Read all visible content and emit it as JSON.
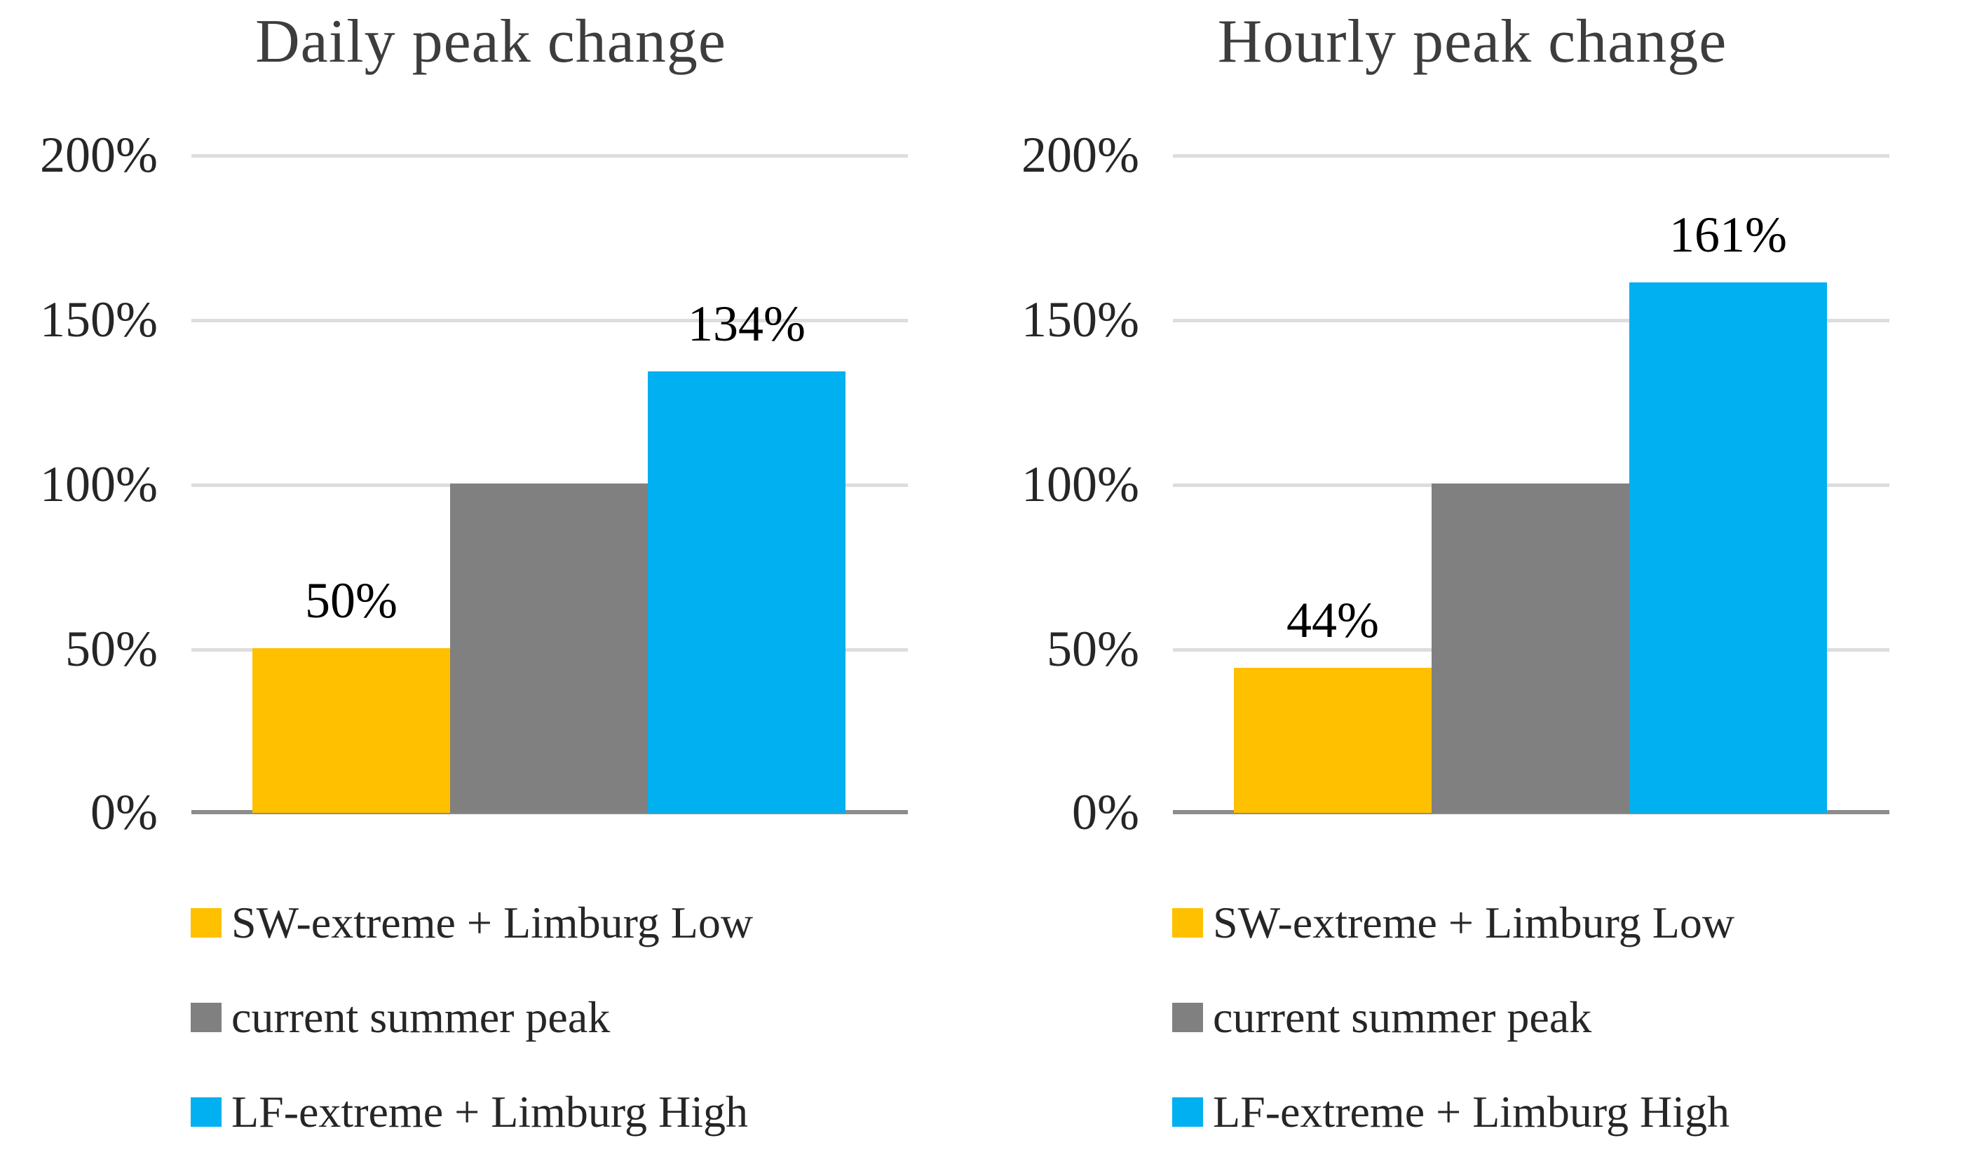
{
  "figure": {
    "background": "#ffffff",
    "panels": 2,
    "font_style": "serif"
  },
  "styles": {
    "gridline_color": "#dddddd",
    "axis_line_color": "#8c8c8c",
    "title_color": "#3d3d3d",
    "tick_label_color": "#262626",
    "data_label_color": "#000000",
    "legend_text_color": "#262626"
  },
  "chart_data": [
    {
      "type": "bar",
      "title": "Daily peak change",
      "categories": [
        "SW-extreme + Limburg Low",
        "current summer peak",
        "LF-extreme + Limburg High"
      ],
      "values": [
        50,
        100,
        134
      ],
      "data_labels": [
        "50%",
        "",
        "134%"
      ],
      "colors": [
        "#FFC000",
        "#808080",
        "#00B0F0"
      ],
      "xlabel": "",
      "ylabel": "",
      "ylim": [
        0,
        200
      ],
      "y_tick_interval_pct": 50,
      "y_tick_labels": [
        "200%",
        "150%",
        "100%",
        "50%",
        "0%"
      ],
      "gridlines": true,
      "legend_position": "bottom",
      "legend": [
        "SW-extreme + Limburg Low",
        "current summer peak",
        "LF-extreme + Limburg High"
      ]
    },
    {
      "type": "bar",
      "title": "Hourly peak change",
      "categories": [
        "SW-extreme + Limburg Low",
        "current summer peak",
        "LF-extreme + Limburg High"
      ],
      "values": [
        44,
        100,
        161
      ],
      "data_labels": [
        "44%",
        "",
        "161%"
      ],
      "colors": [
        "#FFC000",
        "#808080",
        "#00B0F0"
      ],
      "xlabel": "",
      "ylabel": "",
      "ylim": [
        0,
        200
      ],
      "y_tick_interval_pct": 50,
      "y_tick_labels": [
        "200%",
        "150%",
        "100%",
        "50%",
        "0%"
      ],
      "gridlines": true,
      "legend_position": "bottom",
      "legend": [
        "SW-extreme + Limburg Low",
        "current summer peak",
        "LF-extreme + Limburg High"
      ]
    }
  ]
}
